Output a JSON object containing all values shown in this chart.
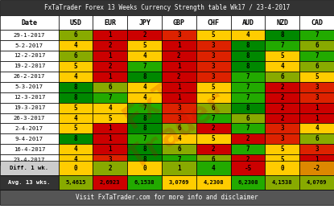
{
  "title": "FxTaTrader Forex 13 Weeks Currency Strength table Wk17 / 23-4-2017",
  "footer": "Visit FxTaTrader.com for more info and disclaimer",
  "columns": [
    "Date",
    "USD",
    "EUR",
    "JPY",
    "GBP",
    "CHF",
    "AUD",
    "NZD",
    "CAD"
  ],
  "rows": [
    [
      "29-1-2017",
      6,
      1,
      2,
      3,
      5,
      4,
      8,
      7
    ],
    [
      "5-2-2017",
      4,
      2,
      5,
      1,
      3,
      8,
      7,
      6
    ],
    [
      "12-2-2017",
      6,
      1,
      4,
      2,
      3,
      8,
      5,
      7
    ],
    [
      "19-2-2017",
      5,
      2,
      7,
      1,
      3,
      8,
      4,
      6
    ],
    [
      "26-2-2017",
      4,
      1,
      8,
      2,
      3,
      7,
      6,
      5
    ],
    [
      "5-3-2017",
      8,
      6,
      4,
      1,
      5,
      7,
      2,
      3
    ],
    [
      "12-3-2017",
      8,
      7,
      4,
      1,
      5,
      7,
      2,
      3
    ],
    [
      "19-3-2017",
      5,
      4,
      7,
      3,
      6,
      8,
      2,
      1
    ],
    [
      "26-3-2017",
      4,
      5,
      8,
      3,
      7,
      6,
      2,
      1
    ],
    [
      "2-4-2017",
      5,
      1,
      8,
      6,
      2,
      7,
      3,
      4
    ],
    [
      "9-4-2017",
      8,
      1,
      7,
      4,
      5,
      2,
      3,
      6
    ],
    [
      "16-4-2017",
      4,
      1,
      8,
      6,
      2,
      7,
      5,
      3
    ],
    [
      "23-4-2017",
      4,
      3,
      8,
      7,
      6,
      2,
      5,
      1
    ]
  ],
  "diff_row": [
    "Diff. 1 wk.",
    0,
    2,
    0,
    1,
    4,
    -5,
    0,
    -2
  ],
  "avg_row": [
    "Avg. 13 wks.",
    "5,4615",
    "2,6923",
    "6,1538",
    "3,0769",
    "4,2308",
    "6,2308",
    "4,1538",
    "4,0769"
  ],
  "color_map": {
    "1": "#cc0000",
    "2": "#cc0000",
    "3": "#dd2200",
    "4": "#ffcc00",
    "5": "#ffcc00",
    "6": "#88aa00",
    "7": "#22aa00",
    "8": "#008800"
  },
  "diff_colors": {
    "0": "#ffcc00",
    "2": "#88aa00",
    "1": "#88aa00",
    "4": "#22aa00",
    "-5": "#cc0000",
    "-2": "#dd8800"
  },
  "avg_colors": {
    "5,4615": "#88aa00",
    "2,6923": "#cc0000",
    "6,1538": "#22aa00",
    "3,0769": "#ffcc00",
    "4,2308": "#ffcc00",
    "6,2308": "#22aa00",
    "4,1538": "#88aa00",
    "4,0769": "#88aa00"
  },
  "title_bg": "#333333",
  "title_color": "#ffffff",
  "header_bg": "#ffffff",
  "header_color": "#000000",
  "date_bg": "#ffffff",
  "date_color": "#000000",
  "diff_bg": "#cccccc",
  "diff_label_bg": "#cccccc",
  "avg_bg": "#333333",
  "avg_color": "#ffffff",
  "footer_bg": "#555555",
  "footer_color": "#ffffff"
}
